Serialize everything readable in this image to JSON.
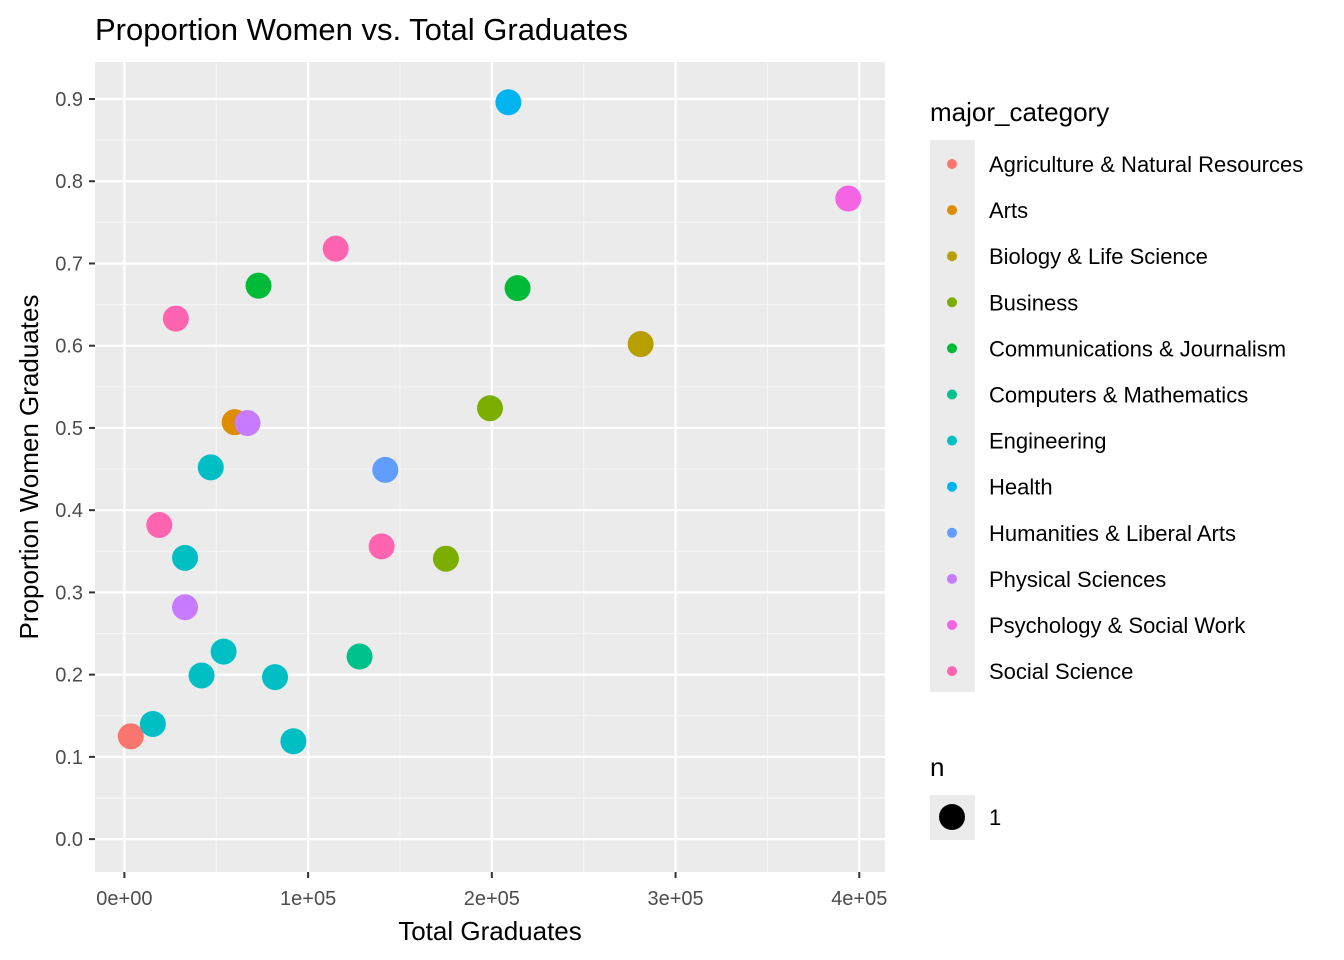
{
  "chart_data": {
    "type": "scatter",
    "title": "Proportion Women vs. Total Graduates",
    "xlabel": "Total Graduates",
    "ylabel": "Proportion Women Graduates",
    "xlim": [
      -16000,
      414000
    ],
    "ylim": [
      -0.04,
      0.945
    ],
    "x_ticks": [
      {
        "value": 0,
        "label": "0e+00"
      },
      {
        "value": 100000,
        "label": "1e+05"
      },
      {
        "value": 200000,
        "label": "2e+05"
      },
      {
        "value": 300000,
        "label": "3e+05"
      },
      {
        "value": 400000,
        "label": "4e+05"
      }
    ],
    "y_ticks": [
      {
        "value": 0.0,
        "label": "0.0"
      },
      {
        "value": 0.1,
        "label": "0.1"
      },
      {
        "value": 0.2,
        "label": "0.2"
      },
      {
        "value": 0.3,
        "label": "0.3"
      },
      {
        "value": 0.4,
        "label": "0.4"
      },
      {
        "value": 0.5,
        "label": "0.5"
      },
      {
        "value": 0.6,
        "label": "0.6"
      },
      {
        "value": 0.7,
        "label": "0.7"
      },
      {
        "value": 0.8,
        "label": "0.8"
      },
      {
        "value": 0.9,
        "label": "0.9"
      }
    ],
    "grid": true,
    "background": "#ebebeb",
    "legend": {
      "placement": "right",
      "color_title": "major_category",
      "size_title": "n",
      "size_label": "1"
    },
    "series": [
      {
        "name": "Agriculture & Natural Resources",
        "color": "#F8766D",
        "points": [
          [
            3500,
            0.125
          ]
        ]
      },
      {
        "name": "Arts",
        "color": "#DE8C00",
        "points": [
          [
            60000,
            0.507
          ]
        ]
      },
      {
        "name": "Biology & Life Science",
        "color": "#B79F00",
        "points": [
          [
            281000,
            0.602
          ]
        ]
      },
      {
        "name": "Business",
        "color": "#7CAE00",
        "points": [
          [
            199000,
            0.524
          ],
          [
            175000,
            0.341
          ]
        ]
      },
      {
        "name": "Communications & Journalism",
        "color": "#00BA38",
        "points": [
          [
            73000,
            0.673
          ],
          [
            214000,
            0.67
          ]
        ]
      },
      {
        "name": "Computers & Mathematics",
        "color": "#00C08B",
        "points": [
          [
            128000,
            0.222
          ]
        ]
      },
      {
        "name": "Engineering",
        "color": "#00BFC4",
        "points": [
          [
            47000,
            0.452
          ],
          [
            33000,
            0.342
          ],
          [
            54000,
            0.228
          ],
          [
            42000,
            0.199
          ],
          [
            82000,
            0.197
          ],
          [
            15500,
            0.14
          ],
          [
            92000,
            0.119
          ]
        ]
      },
      {
        "name": "Health",
        "color": "#00B4F0",
        "points": [
          [
            209000,
            0.896
          ]
        ]
      },
      {
        "name": "Humanities & Liberal Arts",
        "color": "#619CFF",
        "points": [
          [
            142000,
            0.449
          ]
        ]
      },
      {
        "name": "Physical Sciences",
        "color": "#C77CFF",
        "points": [
          [
            67000,
            0.506
          ],
          [
            33000,
            0.282
          ]
        ]
      },
      {
        "name": "Psychology & Social Work",
        "color": "#F564E3",
        "points": [
          [
            394000,
            0.779
          ]
        ]
      },
      {
        "name": "Social Science",
        "color": "#FF64B0",
        "points": [
          [
            115000,
            0.718
          ],
          [
            28000,
            0.633
          ],
          [
            19000,
            0.382
          ],
          [
            140000,
            0.356
          ]
        ]
      }
    ]
  }
}
